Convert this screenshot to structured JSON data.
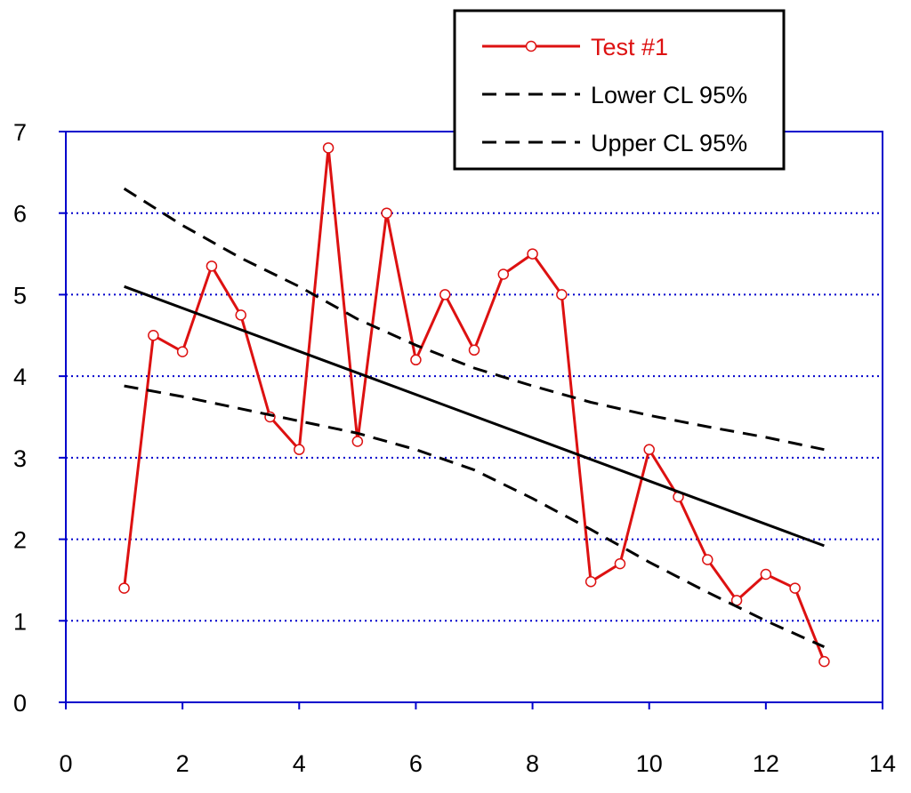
{
  "chart_data": {
    "type": "line",
    "title": "",
    "xlabel": "",
    "ylabel": "",
    "xlim": [
      0,
      14
    ],
    "ylim": [
      0,
      7
    ],
    "x_ticks": [
      0,
      2,
      4,
      6,
      8,
      10,
      12,
      14
    ],
    "y_ticks": [
      0,
      1,
      2,
      3,
      4,
      5,
      6,
      7
    ],
    "grid": {
      "horizontal": true,
      "vertical": false,
      "style": "dotted",
      "color": "#0000cc"
    },
    "axis_color": "#0000cc",
    "legend": {
      "placement": "top-right",
      "entries": [
        {
          "label": "Test #1",
          "color": "#dd1111"
        },
        {
          "label": "Lower CL 95%",
          "color": "#000000"
        },
        {
          "label": "Upper CL 95%",
          "color": "#000000"
        }
      ]
    },
    "series": [
      {
        "name": "Test #1",
        "color": "#dd1111",
        "marker": "circle",
        "x": [
          1,
          1.5,
          2,
          2.5,
          3,
          3.5,
          4,
          4.5,
          5,
          5.5,
          6,
          6.5,
          7,
          7.5,
          8,
          8.5,
          9,
          9.5,
          10,
          10.5,
          11,
          11.5,
          12,
          12.5,
          13
        ],
        "values": [
          1.4,
          4.5,
          4.3,
          5.35,
          4.75,
          3.5,
          3.1,
          6.8,
          3.2,
          6.0,
          4.2,
          5.0,
          4.32,
          5.25,
          5.5,
          5.0,
          1.48,
          1.7,
          3.1,
          2.52,
          1.75,
          1.25,
          1.57,
          1.4,
          0.5
        ]
      },
      {
        "name": "Lower CL 95%",
        "color": "#000000",
        "style": "dashed",
        "x": [
          1,
          2,
          3,
          4,
          5,
          6,
          7,
          8,
          9,
          10,
          11,
          12,
          13
        ],
        "values": [
          3.88,
          3.75,
          3.6,
          3.45,
          3.3,
          3.1,
          2.85,
          2.5,
          2.12,
          1.72,
          1.35,
          1.0,
          0.68
        ]
      },
      {
        "name": "Upper CL 95%",
        "color": "#000000",
        "style": "dashed",
        "x": [
          1,
          2,
          3,
          4,
          5,
          6,
          7,
          8,
          9,
          10,
          11,
          12,
          13
        ],
        "values": [
          6.3,
          5.85,
          5.45,
          5.1,
          4.7,
          4.38,
          4.1,
          3.88,
          3.68,
          3.52,
          3.38,
          3.25,
          3.1
        ]
      },
      {
        "name": "",
        "color": "#000000",
        "style": "solid",
        "x": [
          1,
          13
        ],
        "values": [
          5.1,
          1.92
        ]
      }
    ]
  }
}
